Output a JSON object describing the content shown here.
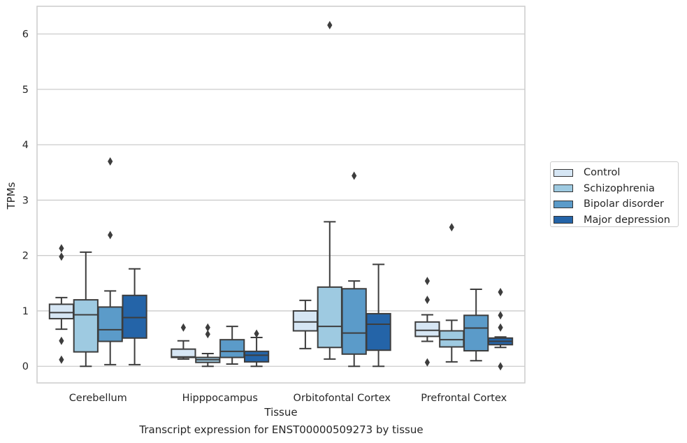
{
  "caption": "Transcript expression for ENST00000509273 by tissue",
  "chart_data": {
    "type": "box",
    "xlabel": "Tissue",
    "ylabel": "TPMs",
    "ylim": [
      -0.3,
      6.5
    ],
    "yticks": [
      0,
      1,
      2,
      3,
      4,
      5,
      6
    ],
    "grid": "horizontal",
    "legend_position": "outside-right",
    "categories": [
      "Cerebellum",
      "Hipppocampus",
      "Orbitofontal Cortex",
      "Prefrontal Cortex"
    ],
    "series": [
      {
        "name": "Control",
        "color": "#d6e6f4",
        "boxes": [
          {
            "whislo": 0.67,
            "q1": 0.86,
            "med": 0.97,
            "q3": 1.12,
            "whishi": 1.24,
            "fliers": [
              2.13,
              1.98,
              0.46,
              0.12
            ]
          },
          {
            "whislo": 0.13,
            "q1": 0.16,
            "med": 0.17,
            "q3": 0.31,
            "whishi": 0.46,
            "fliers": [
              0.7
            ]
          },
          {
            "whislo": 0.32,
            "q1": 0.64,
            "med": 0.8,
            "q3": 1.0,
            "whishi": 1.19,
            "fliers": []
          },
          {
            "whislo": 0.45,
            "q1": 0.54,
            "med": 0.65,
            "q3": 0.8,
            "whishi": 0.93,
            "fliers": [
              1.54,
              1.2,
              0.07
            ]
          }
        ]
      },
      {
        "name": "Schizophrenia",
        "color": "#9ecae1",
        "boxes": [
          {
            "whislo": 0.0,
            "q1": 0.26,
            "med": 0.93,
            "q3": 1.2,
            "whishi": 2.06,
            "fliers": []
          },
          {
            "whislo": 0.0,
            "q1": 0.07,
            "med": 0.12,
            "q3": 0.16,
            "whishi": 0.23,
            "fliers": [
              0.7,
              0.58
            ]
          },
          {
            "whislo": 0.13,
            "q1": 0.34,
            "med": 0.72,
            "q3": 1.43,
            "whishi": 2.61,
            "fliers": [
              6.16
            ]
          },
          {
            "whislo": 0.08,
            "q1": 0.35,
            "med": 0.48,
            "q3": 0.64,
            "whishi": 0.83,
            "fliers": [
              2.51
            ]
          }
        ]
      },
      {
        "name": "Bipolar disorder",
        "color": "#5b9bc9",
        "boxes": [
          {
            "whislo": 0.03,
            "q1": 0.45,
            "med": 0.66,
            "q3": 1.07,
            "whishi": 1.36,
            "fliers": [
              3.7,
              2.37
            ]
          },
          {
            "whislo": 0.04,
            "q1": 0.16,
            "med": 0.27,
            "q3": 0.48,
            "whishi": 0.72,
            "fliers": []
          },
          {
            "whislo": 0.0,
            "q1": 0.22,
            "med": 0.6,
            "q3": 1.4,
            "whishi": 1.54,
            "fliers": [
              3.44
            ]
          },
          {
            "whislo": 0.1,
            "q1": 0.28,
            "med": 0.69,
            "q3": 0.92,
            "whishi": 1.39,
            "fliers": []
          }
        ]
      },
      {
        "name": "Major depression",
        "color": "#2464a8",
        "boxes": [
          {
            "whislo": 0.03,
            "q1": 0.51,
            "med": 0.88,
            "q3": 1.28,
            "whishi": 1.76,
            "fliers": []
          },
          {
            "whislo": 0.0,
            "q1": 0.08,
            "med": 0.2,
            "q3": 0.27,
            "whishi": 0.52,
            "fliers": [
              0.59
            ]
          },
          {
            "whislo": 0.0,
            "q1": 0.29,
            "med": 0.76,
            "q3": 0.95,
            "whishi": 1.84,
            "fliers": []
          },
          {
            "whislo": 0.34,
            "q1": 0.39,
            "med": 0.45,
            "q3": 0.51,
            "whishi": 0.53,
            "fliers": [
              1.34,
              0.92,
              0.7,
              0.0
            ]
          }
        ]
      }
    ]
  }
}
